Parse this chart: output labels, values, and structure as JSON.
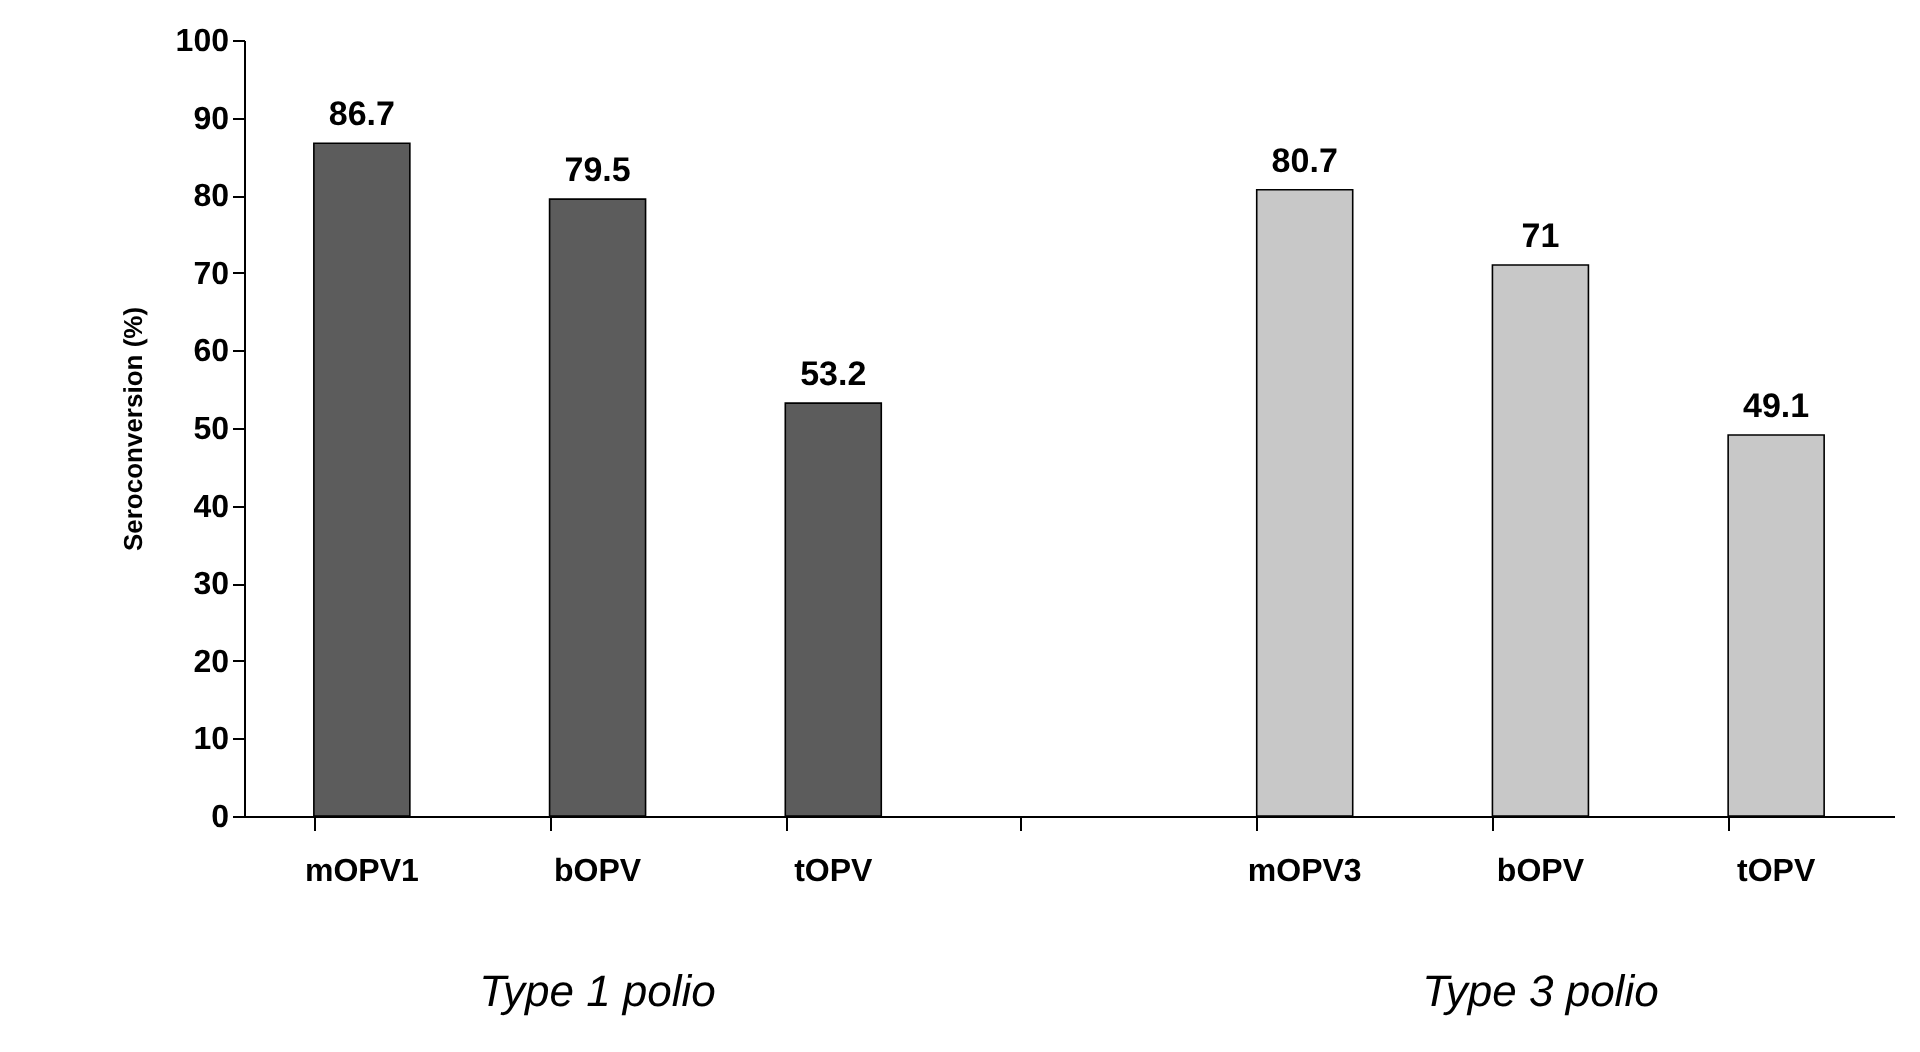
{
  "chart_data": {
    "type": "bar",
    "ylabel": "Seroconversion (%)",
    "categories": [
      "mOPV1",
      "bOPV",
      "tOPV",
      null,
      "mOPV3",
      "bOPV",
      "tOPV"
    ],
    "values": [
      86.7,
      79.5,
      53.2,
      null,
      80.7,
      71,
      49.1
    ],
    "colors": [
      "#5c5c5c",
      "#5c5c5c",
      "#5c5c5c",
      null,
      "#c8c8c8",
      "#c8c8c8",
      "#c8c8c8"
    ],
    "ylim": [
      0,
      100
    ],
    "yticks": [
      0,
      10,
      20,
      30,
      40,
      50,
      60,
      70,
      80,
      90,
      100
    ],
    "data_labels": true,
    "grid": false,
    "annotations": [
      "Type 1 polio",
      "Type 3 polio"
    ]
  }
}
